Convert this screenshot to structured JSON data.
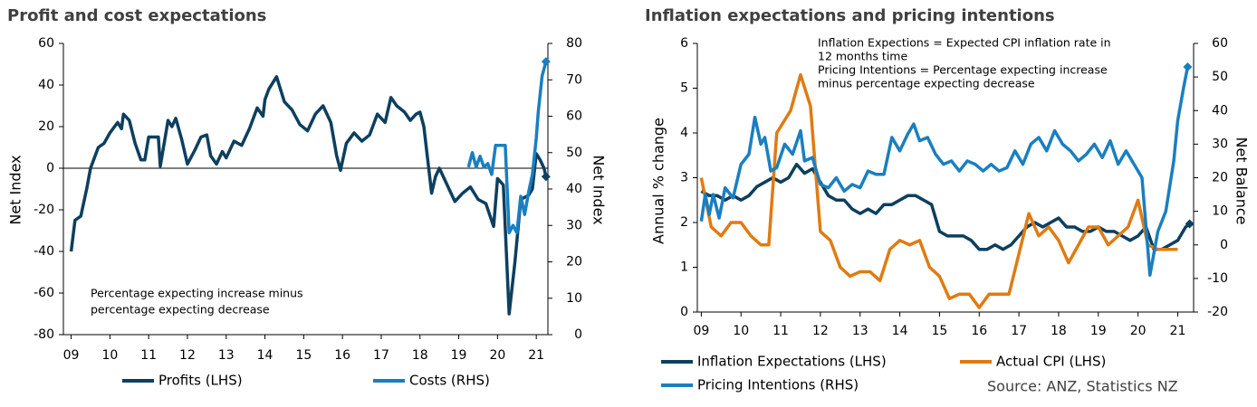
{
  "chart_data": [
    {
      "type": "line",
      "title": "Profit and cost expectations",
      "ylabel": "Net Index",
      "y2label": "Net Index",
      "annotation": [
        "Percentage expecting increase minus",
        "percentage expecting decrease"
      ],
      "xlim": [
        2008.8,
        2021.3
      ],
      "xticks": [
        {
          "value": 2009,
          "label": "09"
        },
        {
          "value": 2010,
          "label": "10"
        },
        {
          "value": 2011,
          "label": "11"
        },
        {
          "value": 2012,
          "label": "12"
        },
        {
          "value": 2013,
          "label": "13"
        },
        {
          "value": 2014,
          "label": "14"
        },
        {
          "value": 2015,
          "label": "15"
        },
        {
          "value": 2016,
          "label": "16"
        },
        {
          "value": 2017,
          "label": "17"
        },
        {
          "value": 2018,
          "label": "18"
        },
        {
          "value": 2019,
          "label": "19"
        },
        {
          "value": 2020,
          "label": "20"
        },
        {
          "value": 2021,
          "label": "21"
        }
      ],
      "ylim": [
        -80,
        60
      ],
      "yticks": [
        -80,
        -60,
        -40,
        -20,
        0,
        20,
        40,
        60
      ],
      "y2lim": [
        0,
        80
      ],
      "y2ticks": [
        0,
        10,
        20,
        30,
        40,
        50,
        60,
        70,
        80
      ],
      "zero_line": true,
      "grid": false,
      "series": [
        {
          "name": "Profits (LHS)",
          "color": "#0d3f5f",
          "end_marker": "diamond",
          "x": [
            2009.0,
            2009.1,
            2009.25,
            2009.4,
            2009.5,
            2009.7,
            2009.85,
            2010.0,
            2010.2,
            2010.3,
            2010.35,
            2010.5,
            2010.65,
            2010.8,
            2010.9,
            2011.0,
            2011.25,
            2011.3,
            2011.5,
            2011.6,
            2011.7,
            2011.85,
            2012.0,
            2012.2,
            2012.35,
            2012.5,
            2012.6,
            2012.75,
            2012.9,
            2013.0,
            2013.2,
            2013.4,
            2013.6,
            2013.8,
            2013.95,
            2014.0,
            2014.1,
            2014.3,
            2014.5,
            2014.7,
            2014.9,
            2015.1,
            2015.3,
            2015.5,
            2015.7,
            2015.85,
            2015.95,
            2016.1,
            2016.3,
            2016.5,
            2016.7,
            2016.9,
            2017.1,
            2017.25,
            2017.4,
            2017.6,
            2017.75,
            2017.9,
            2018.0,
            2018.1,
            2018.3,
            2018.4,
            2018.5,
            2018.7,
            2018.9,
            2019.1,
            2019.3,
            2019.5,
            2019.7,
            2019.9,
            2020.0,
            2020.15,
            2020.3,
            2020.45,
            2020.6,
            2020.8,
            2020.9,
            2021.0,
            2021.1,
            2021.2,
            2021.25
          ],
          "values": [
            -40,
            -25,
            -23,
            -10,
            0,
            10,
            12,
            17,
            22,
            19,
            26,
            23,
            12,
            4,
            4,
            15,
            15,
            1,
            23,
            20,
            24,
            14,
            2,
            9,
            15,
            16,
            6,
            2,
            8,
            5,
            13,
            11,
            19,
            29,
            25,
            33,
            38,
            44,
            32,
            28,
            21,
            18,
            26,
            30,
            22,
            6,
            -1,
            12,
            17,
            13,
            16,
            26,
            22,
            34,
            30,
            27,
            23,
            26,
            27,
            20,
            -12,
            -4,
            0,
            -8,
            -16,
            -12,
            -9,
            -15,
            -17,
            -28,
            -5,
            -8,
            -70,
            -45,
            -15,
            -13,
            -10,
            7,
            4,
            0,
            -4
          ]
        },
        {
          "name": "Costs (RHS)",
          "color": "#1a7fc0",
          "axis": "y2",
          "end_marker": "diamond",
          "x": [
            2019.25,
            2019.35,
            2019.45,
            2019.55,
            2019.65,
            2019.75,
            2019.85,
            2019.95,
            2020.1,
            2020.2,
            2020.3,
            2020.4,
            2020.5,
            2020.6,
            2020.7,
            2020.8,
            2020.9,
            2021.0,
            2021.05,
            2021.15,
            2021.2,
            2021.25
          ],
          "values": [
            46,
            50,
            46,
            49,
            46,
            47,
            44,
            52,
            52,
            52,
            28,
            30,
            28,
            38,
            33,
            39,
            44,
            54,
            61,
            71,
            73,
            75
          ]
        }
      ]
    },
    {
      "type": "line",
      "title": "Inflation expectations and pricing intentions",
      "ylabel": "Annual % change",
      "y2label": "Net Balance",
      "annotation": [
        "Inflation Expections = Expected CPI inflation rate in",
        "12 months time",
        "Pricing Intentions = Percentage expecting increase",
        "minus percentage expecting decrease"
      ],
      "source": "Source: ANZ, Statistics NZ",
      "xlim": [
        2008.9,
        2021.4
      ],
      "xticks": [
        {
          "value": 2009,
          "label": "09"
        },
        {
          "value": 2010,
          "label": "10"
        },
        {
          "value": 2011,
          "label": "11"
        },
        {
          "value": 2012,
          "label": "12"
        },
        {
          "value": 2013,
          "label": "13"
        },
        {
          "value": 2014,
          "label": "14"
        },
        {
          "value": 2015,
          "label": "15"
        },
        {
          "value": 2016,
          "label": "16"
        },
        {
          "value": 2017,
          "label": "17"
        },
        {
          "value": 2018,
          "label": "18"
        },
        {
          "value": 2019,
          "label": "19"
        },
        {
          "value": 2020,
          "label": "20"
        },
        {
          "value": 2021,
          "label": "21"
        }
      ],
      "ylim": [
        0,
        6
      ],
      "yticks": [
        0,
        1,
        2,
        3,
        4,
        5,
        6
      ],
      "y2lim": [
        -20,
        60
      ],
      "y2ticks": [
        -20,
        -10,
        0,
        10,
        20,
        30,
        40,
        50,
        60
      ],
      "zero_line": false,
      "grid": false,
      "series": [
        {
          "name": "Inflation Expectations (LHS)",
          "color": "#0d3f5f",
          "end_marker": "diamond",
          "x": [
            2009.0,
            2009.2,
            2009.4,
            2009.6,
            2009.8,
            2010.0,
            2010.2,
            2010.4,
            2010.6,
            2010.8,
            2011.0,
            2011.2,
            2011.4,
            2011.6,
            2011.8,
            2012.0,
            2012.2,
            2012.4,
            2012.6,
            2012.8,
            2013.0,
            2013.2,
            2013.4,
            2013.6,
            2013.8,
            2014.0,
            2014.2,
            2014.4,
            2014.6,
            2014.8,
            2015.0,
            2015.2,
            2015.4,
            2015.6,
            2015.8,
            2016.0,
            2016.2,
            2016.4,
            2016.6,
            2016.8,
            2017.0,
            2017.2,
            2017.4,
            2017.6,
            2017.8,
            2018.0,
            2018.2,
            2018.4,
            2018.6,
            2018.8,
            2019.0,
            2019.2,
            2019.4,
            2019.6,
            2019.8,
            2020.0,
            2020.2,
            2020.4,
            2020.6,
            2020.8,
            2021.0,
            2021.2,
            2021.3
          ],
          "values": [
            2.7,
            2.6,
            2.6,
            2.5,
            2.6,
            2.5,
            2.6,
            2.8,
            2.9,
            3.0,
            2.9,
            3.0,
            3.3,
            3.1,
            3.2,
            2.9,
            2.6,
            2.5,
            2.5,
            2.3,
            2.2,
            2.3,
            2.2,
            2.4,
            2.4,
            2.5,
            2.6,
            2.6,
            2.5,
            2.4,
            1.8,
            1.7,
            1.7,
            1.7,
            1.6,
            1.4,
            1.4,
            1.5,
            1.4,
            1.5,
            1.7,
            1.9,
            2.0,
            1.9,
            2.0,
            2.1,
            1.9,
            1.9,
            1.8,
            1.8,
            1.9,
            1.8,
            1.8,
            1.7,
            1.6,
            1.7,
            1.9,
            1.4,
            1.4,
            1.5,
            1.6,
            1.9,
            1.97
          ]
        },
        {
          "name": "Actual CPI (LHS)",
          "color": "#e07b12",
          "x": [
            2009.0,
            2009.25,
            2009.5,
            2009.75,
            2010.0,
            2010.25,
            2010.5,
            2010.7,
            2010.9,
            2011.25,
            2011.5,
            2011.75,
            2012.0,
            2012.25,
            2012.5,
            2012.75,
            2013.0,
            2013.25,
            2013.5,
            2013.75,
            2014.0,
            2014.25,
            2014.5,
            2014.75,
            2015.0,
            2015.25,
            2015.5,
            2015.75,
            2016.0,
            2016.25,
            2016.5,
            2016.75,
            2017.0,
            2017.25,
            2017.5,
            2017.75,
            2018.0,
            2018.25,
            2018.5,
            2018.75,
            2019.0,
            2019.25,
            2019.5,
            2019.75,
            2020.0,
            2020.25,
            2020.5,
            2020.75,
            2021.0
          ],
          "values": [
            3.0,
            1.9,
            1.7,
            2.0,
            2.0,
            1.7,
            1.5,
            1.5,
            4.0,
            4.5,
            5.3,
            4.6,
            1.8,
            1.6,
            1.0,
            0.8,
            0.9,
            0.9,
            0.7,
            1.4,
            1.6,
            1.5,
            1.6,
            1.0,
            0.8,
            0.3,
            0.4,
            0.4,
            0.1,
            0.4,
            0.4,
            0.4,
            1.3,
            2.2,
            1.7,
            1.9,
            1.6,
            1.1,
            1.5,
            1.9,
            1.9,
            1.5,
            1.7,
            1.9,
            2.5,
            1.5,
            1.4,
            1.4,
            1.4
          ]
        },
        {
          "name": "Pricing Intentions (RHS)",
          "color": "#1a7fc0",
          "axis": "y2",
          "end_marker": "diamond",
          "x": [
            2009.0,
            2009.1,
            2009.2,
            2009.3,
            2009.45,
            2009.6,
            2009.8,
            2010.0,
            2010.2,
            2010.35,
            2010.5,
            2010.6,
            2010.75,
            2010.9,
            2011.1,
            2011.3,
            2011.5,
            2011.6,
            2011.8,
            2012.0,
            2012.2,
            2012.4,
            2012.6,
            2012.8,
            2013.0,
            2013.2,
            2013.4,
            2013.6,
            2013.8,
            2014.0,
            2014.2,
            2014.35,
            2014.5,
            2014.7,
            2014.9,
            2015.1,
            2015.3,
            2015.5,
            2015.7,
            2015.9,
            2016.1,
            2016.3,
            2016.5,
            2016.7,
            2016.9,
            2017.1,
            2017.3,
            2017.5,
            2017.7,
            2017.9,
            2018.1,
            2018.3,
            2018.5,
            2018.7,
            2018.9,
            2019.1,
            2019.3,
            2019.5,
            2019.7,
            2019.9,
            2020.1,
            2020.3,
            2020.5,
            2020.7,
            2020.9,
            2021.0,
            2021.15,
            2021.25
          ],
          "values": [
            7,
            15,
            9,
            15,
            8,
            17,
            14,
            24,
            27,
            38,
            30,
            32,
            22,
            23,
            30,
            27,
            34,
            25,
            26,
            18,
            17,
            20,
            16,
            18,
            17,
            22,
            21,
            21,
            32,
            28,
            33,
            36,
            31,
            32,
            27,
            24,
            25,
            22,
            25,
            24,
            22,
            24,
            22,
            23,
            28,
            24,
            30,
            32,
            28,
            34,
            30,
            28,
            25,
            27,
            30,
            26,
            31,
            24,
            28,
            24,
            20,
            -9,
            4,
            10,
            25,
            37,
            47,
            53
          ]
        }
      ]
    }
  ]
}
